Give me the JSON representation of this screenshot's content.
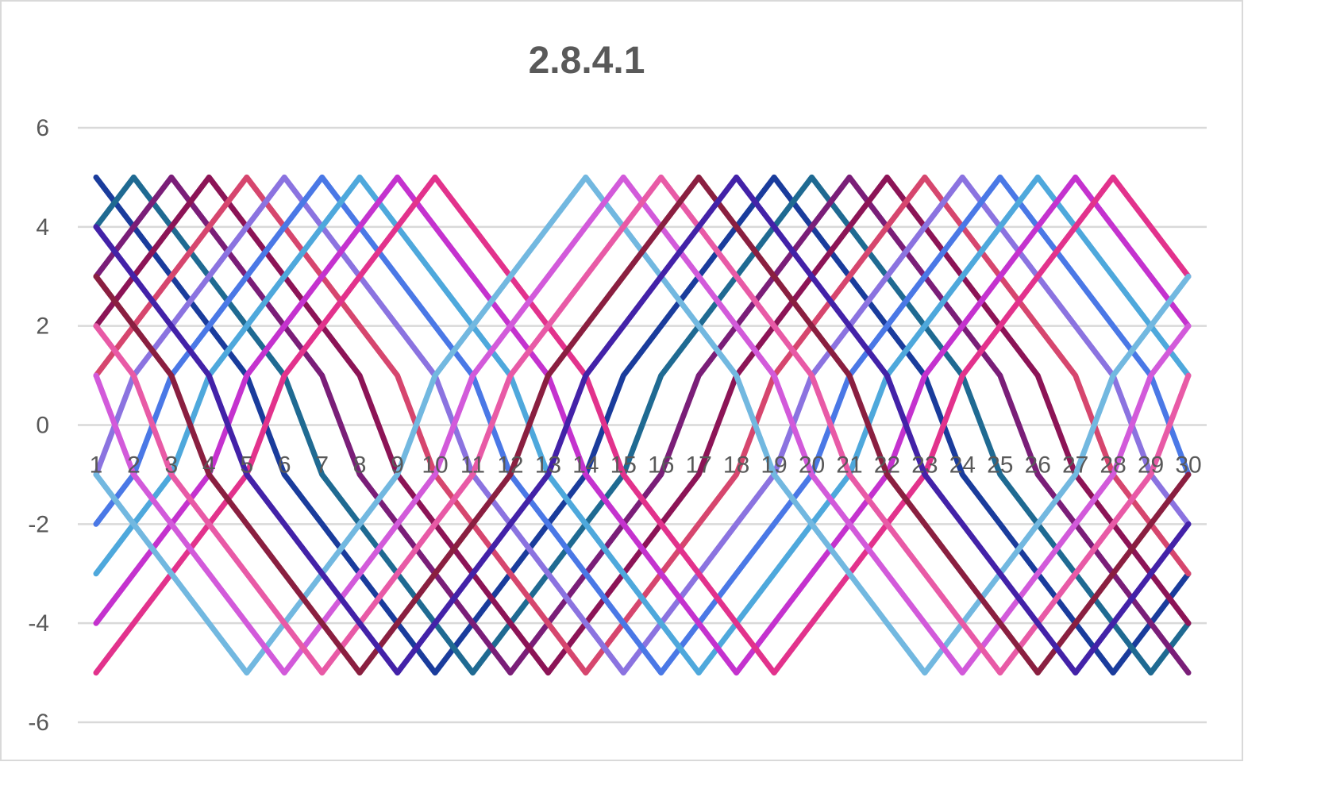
{
  "chart_data": {
    "type": "line",
    "title": "2.8.4.1",
    "xlabel": "",
    "ylabel": "",
    "categories": [
      1,
      2,
      3,
      4,
      5,
      6,
      7,
      8,
      9,
      10,
      11,
      12,
      13,
      14,
      15,
      16,
      17,
      18,
      19,
      20,
      21,
      22,
      23,
      24,
      25,
      26,
      27,
      28,
      29,
      30
    ],
    "ylim": [
      -6,
      6
    ],
    "yticks": [
      -6,
      -4,
      -2,
      0,
      2,
      4,
      6
    ],
    "grid": true,
    "legend": "none",
    "series": [
      {
        "color": "#1A3C9C",
        "values": [
          5,
          4,
          3,
          2,
          1,
          -1,
          -2,
          -3,
          -4,
          -5,
          -4,
          -3,
          -2,
          -1,
          1,
          2,
          3,
          4,
          5,
          4,
          3,
          2,
          1,
          -1,
          -2,
          -3,
          -4,
          -5,
          -4,
          -3
        ]
      },
      {
        "color": "#1F6A92",
        "values": [
          4,
          5,
          4,
          3,
          2,
          1,
          -1,
          -2,
          -3,
          -4,
          -5,
          -4,
          -3,
          -2,
          -1,
          1,
          2,
          3,
          4,
          5,
          4,
          3,
          2,
          1,
          -1,
          -2,
          -3,
          -4,
          -5,
          -4
        ]
      },
      {
        "color": "#7A1E78",
        "values": [
          3,
          4,
          5,
          4,
          3,
          2,
          1,
          -1,
          -2,
          -3,
          -4,
          -5,
          -4,
          -3,
          -2,
          -1,
          1,
          2,
          3,
          4,
          5,
          4,
          3,
          2,
          1,
          -1,
          -2,
          -3,
          -4,
          -5
        ]
      },
      {
        "color": "#8C1456",
        "values": [
          2,
          3,
          4,
          5,
          4,
          3,
          2,
          1,
          -1,
          -2,
          -3,
          -4,
          -5,
          -4,
          -3,
          -2,
          -1,
          1,
          2,
          3,
          4,
          5,
          4,
          3,
          2,
          1,
          -1,
          -2,
          -3,
          -4
        ]
      },
      {
        "color": "#D6466E",
        "values": [
          1,
          2,
          3,
          4,
          5,
          4,
          3,
          2,
          1,
          -1,
          -2,
          -3,
          -4,
          -5,
          -4,
          -3,
          -2,
          -1,
          1,
          2,
          3,
          4,
          5,
          4,
          3,
          2,
          1,
          -1,
          -2,
          -3
        ]
      },
      {
        "color": "#8B73E0",
        "values": [
          -1,
          1,
          2,
          3,
          4,
          5,
          4,
          3,
          2,
          1,
          -1,
          -2,
          -3,
          -4,
          -5,
          -4,
          -3,
          -2,
          -1,
          1,
          2,
          3,
          4,
          5,
          4,
          3,
          2,
          1,
          -1,
          -2
        ]
      },
      {
        "color": "#4A78E6",
        "values": [
          -2,
          -1,
          1,
          2,
          3,
          4,
          5,
          4,
          3,
          2,
          1,
          -1,
          -2,
          -3,
          -4,
          -5,
          -4,
          -3,
          -2,
          -1,
          1,
          2,
          3,
          4,
          5,
          4,
          3,
          2,
          1,
          -1
        ]
      },
      {
        "color": "#4EA8DC",
        "values": [
          -3,
          -2,
          -1,
          1,
          2,
          3,
          4,
          5,
          4,
          3,
          2,
          1,
          -1,
          -2,
          -3,
          -4,
          -5,
          -4,
          -3,
          -2,
          -1,
          1,
          2,
          3,
          4,
          5,
          4,
          3,
          2,
          1
        ]
      },
      {
        "color": "#C432CE",
        "values": [
          -4,
          -3,
          -2,
          -1,
          1,
          2,
          3,
          4,
          5,
          4,
          3,
          2,
          1,
          -1,
          -2,
          -3,
          -4,
          -5,
          -4,
          -3,
          -2,
          -1,
          1,
          2,
          3,
          4,
          5,
          4,
          3,
          2
        ]
      },
      {
        "color": "#E2328C",
        "values": [
          -5,
          -4,
          -3,
          -2,
          -1,
          1,
          2,
          3,
          4,
          5,
          4,
          3,
          2,
          1,
          -1,
          -2,
          -3,
          -4,
          -5,
          -4,
          -3,
          -2,
          -1,
          1,
          2,
          3,
          4,
          5,
          4,
          3
        ]
      },
      {
        "color": "#72B8E0",
        "values": [
          -1,
          -2,
          -3,
          -4,
          -5,
          -4,
          -3,
          -2,
          -1,
          1,
          2,
          3,
          4,
          5,
          4,
          3,
          2,
          1,
          -1,
          -2,
          -3,
          -4,
          -5,
          -4,
          -3,
          -2,
          -1,
          1,
          2,
          3
        ]
      },
      {
        "color": "#D25ADA",
        "values": [
          1,
          -1,
          -2,
          -3,
          -4,
          -5,
          -4,
          -3,
          -2,
          -1,
          1,
          2,
          3,
          4,
          5,
          4,
          3,
          2,
          1,
          -1,
          -2,
          -3,
          -4,
          -5,
          -4,
          -3,
          -2,
          -1,
          1,
          2
        ]
      },
      {
        "color": "#E85AA6",
        "values": [
          2,
          1,
          -1,
          -2,
          -3,
          -4,
          -5,
          -4,
          -3,
          -2,
          -1,
          1,
          2,
          3,
          4,
          5,
          4,
          3,
          2,
          1,
          -1,
          -2,
          -3,
          -4,
          -5,
          -4,
          -3,
          -2,
          -1,
          1
        ]
      },
      {
        "color": "#8A1F40",
        "values": [
          3,
          2,
          1,
          -1,
          -2,
          -3,
          -4,
          -5,
          -4,
          -3,
          -2,
          -1,
          1,
          2,
          3,
          4,
          5,
          4,
          3,
          2,
          1,
          -1,
          -2,
          -3,
          -4,
          -5,
          -4,
          -3,
          -2,
          -1
        ]
      },
      {
        "color": "#4322A8",
        "values": [
          4,
          3,
          2,
          1,
          -1,
          -2,
          -3,
          -4,
          -5,
          -4,
          -3,
          -2,
          -1,
          1,
          2,
          3,
          4,
          5,
          4,
          3,
          2,
          1,
          -1,
          -2,
          -3,
          -4,
          -5,
          -4,
          -3,
          -2
        ]
      }
    ],
    "colors": {
      "text": "#595959",
      "grid": "#d9d9d9"
    }
  }
}
